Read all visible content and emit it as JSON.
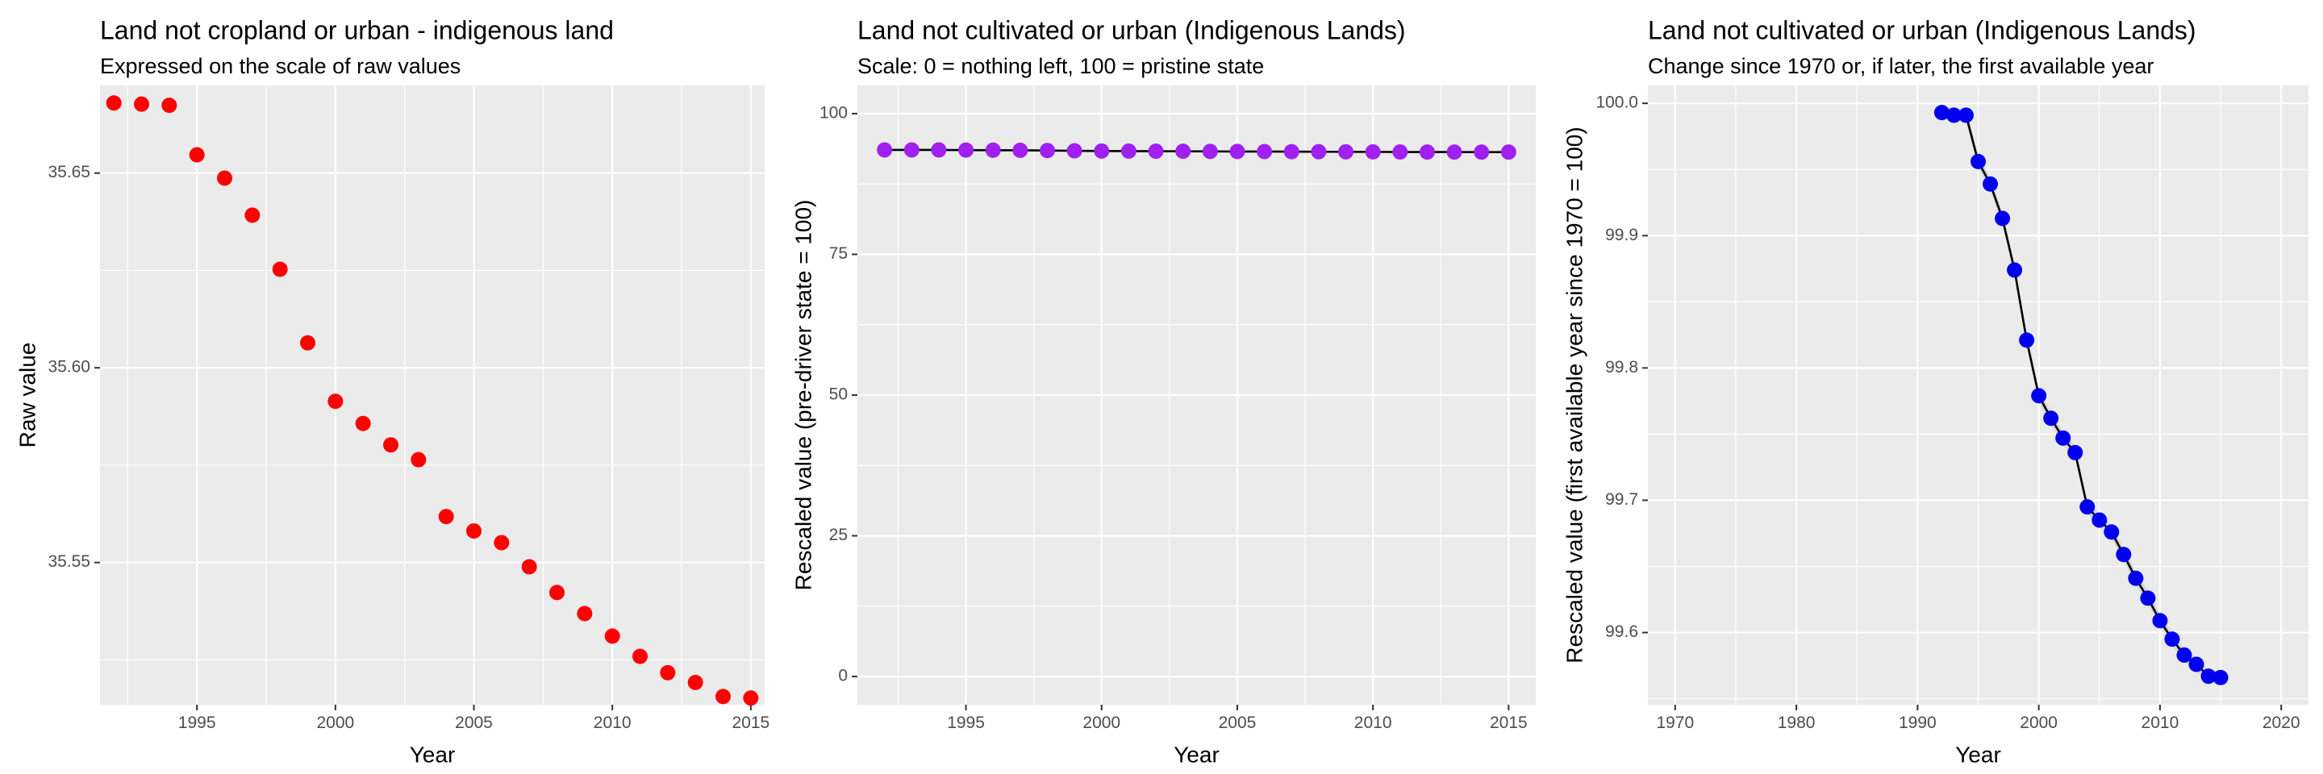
{
  "chart_data": [
    {
      "type": "scatter",
      "title": "Land not cropland or urban - indigenous land",
      "subtitle": "Expressed on the scale of raw values",
      "xlabel": "Year",
      "ylabel": "Raw value",
      "xlim": [
        1991.5,
        2015.5
      ],
      "ylim": [
        35.5135,
        35.6725
      ],
      "x_ticks": [
        1995,
        2000,
        2005,
        2010,
        2015
      ],
      "y_ticks": [
        35.55,
        35.6,
        35.65
      ],
      "y_tick_labels": [
        "35.55",
        "35.60",
        "35.65"
      ],
      "grid": true,
      "point_color": "#ff0000",
      "show_line": false,
      "series": [
        {
          "x": [
            1992,
            1993,
            1994,
            1995,
            1996,
            1997,
            1998,
            1999,
            2000,
            2001,
            2002,
            2003,
            2004,
            2005,
            2006,
            2007,
            2008,
            2009,
            2010,
            2011,
            2012,
            2013,
            2014,
            2015
          ],
          "values": [
            35.668,
            35.6677,
            35.6674,
            35.6547,
            35.6487,
            35.6392,
            35.6253,
            35.6064,
            35.5914,
            35.5857,
            35.5802,
            35.5764,
            35.5618,
            35.5581,
            35.5551,
            35.5489,
            35.5423,
            35.5369,
            35.5311,
            35.5259,
            35.5217,
            35.5192,
            35.5156,
            35.5152
          ]
        }
      ]
    },
    {
      "type": "scatter",
      "title": "Land not cultivated or urban (Indigenous Lands)",
      "subtitle": "Scale: 0 = nothing left, 100 = pristine state",
      "xlabel": "Year",
      "ylabel": "Rescaled value (pre-driver state = 100)",
      "xlim": [
        1991.0,
        2016.0
      ],
      "ylim": [
        -5,
        105
      ],
      "x_ticks": [
        1995,
        2000,
        2005,
        2010,
        2015
      ],
      "y_ticks": [
        0,
        25,
        50,
        75,
        100
      ],
      "y_tick_labels": [
        "0",
        "25",
        "50",
        "75",
        "100"
      ],
      "grid": true,
      "point_color": "#a020f0",
      "show_line": true,
      "line_color": "#000000",
      "series": [
        {
          "x": [
            1992,
            1993,
            1994,
            1995,
            1996,
            1997,
            1998,
            1999,
            2000,
            2001,
            2002,
            2003,
            2004,
            2005,
            2006,
            2007,
            2008,
            2009,
            2010,
            2011,
            2012,
            2013,
            2014,
            2015
          ],
          "values": [
            93.55,
            93.55,
            93.55,
            93.52,
            93.5,
            93.48,
            93.44,
            93.39,
            93.35,
            93.34,
            93.32,
            93.31,
            93.28,
            93.27,
            93.26,
            93.24,
            93.23,
            93.21,
            93.2,
            93.18,
            93.17,
            93.17,
            93.16,
            93.16
          ]
        }
      ]
    },
    {
      "type": "scatter",
      "title": "Land not cultivated or urban (Indigenous Lands)",
      "subtitle": "Change since 1970 or, if later, the first available year",
      "xlabel": "Year",
      "ylabel": "Rescaled value (first available year since 1970 = 100)",
      "xlim": [
        1967.75,
        2022.25
      ],
      "ylim": [
        99.5455,
        100.0135
      ],
      "x_ticks": [
        1970,
        1980,
        1990,
        2000,
        2010,
        2020
      ],
      "y_ticks": [
        99.6,
        99.7,
        99.8,
        99.9,
        100.0
      ],
      "y_tick_labels": [
        "99.6",
        "99.7",
        "99.8",
        "99.9",
        "100.0"
      ],
      "grid": true,
      "point_color": "#0000ee",
      "show_line": true,
      "line_color": "#000000",
      "band_color": "#c8c8c8",
      "series": [
        {
          "x": [
            1992,
            1993,
            1994,
            1995,
            1996,
            1997,
            1998,
            1999,
            2000,
            2001,
            2002,
            2003,
            2004,
            2005,
            2006,
            2007,
            2008,
            2009,
            2010,
            2011,
            2012,
            2013,
            2014,
            2015
          ],
          "values": [
            99.993,
            99.991,
            99.991,
            99.956,
            99.939,
            99.913,
            99.874,
            99.821,
            99.779,
            99.762,
            99.747,
            99.736,
            99.695,
            99.685,
            99.676,
            99.659,
            99.641,
            99.626,
            99.609,
            99.595,
            99.583,
            99.576,
            99.567,
            99.566
          ]
        }
      ]
    }
  ]
}
